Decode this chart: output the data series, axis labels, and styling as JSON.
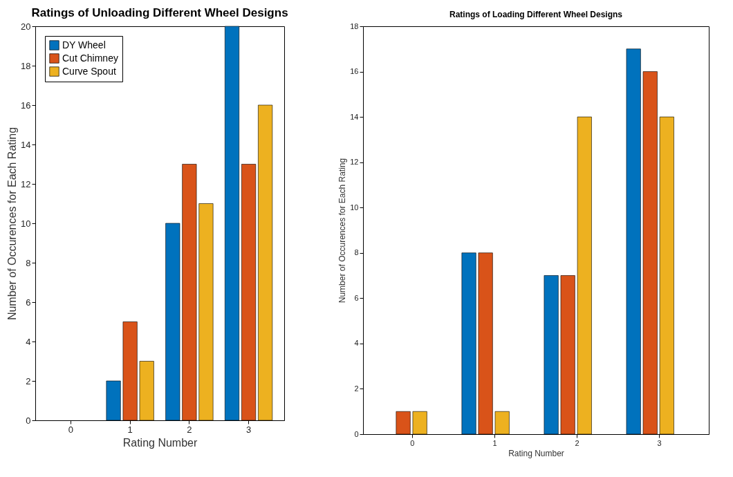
{
  "chart_data": [
    {
      "type": "bar",
      "title": "Ratings of Unloading Different Wheel Designs",
      "xlabel": "Rating Number",
      "ylabel": "Number of Occurences for Each Rating",
      "categories": [
        "0",
        "1",
        "2",
        "3"
      ],
      "ylim": [
        0,
        20
      ],
      "yticks": [
        0,
        2,
        4,
        6,
        8,
        10,
        12,
        14,
        16,
        18,
        20
      ],
      "grid": false,
      "legend": "top left",
      "series": [
        {
          "name": "DY Wheel",
          "color": "#0072bd",
          "values": [
            0,
            2,
            10,
            20
          ]
        },
        {
          "name": "Cut Chimney",
          "color": "#d95319",
          "values": [
            0,
            5,
            13,
            13
          ]
        },
        {
          "name": "Curve Spout",
          "color": "#edb120",
          "values": [
            0,
            3,
            11,
            16
          ]
        }
      ]
    },
    {
      "type": "bar",
      "title": "Ratings of Loading Different Wheel Designs",
      "xlabel": "Rating Number",
      "ylabel": "Number of Occurences for Each Rating",
      "categories": [
        "0",
        "1",
        "2",
        "3"
      ],
      "ylim": [
        0,
        18
      ],
      "yticks": [
        0,
        2,
        4,
        6,
        8,
        10,
        12,
        14,
        16,
        18
      ],
      "grid": false,
      "legend": "top left",
      "series": [
        {
          "name": "DY Wheel",
          "color": "#0072bd",
          "values": [
            0,
            8,
            7,
            17
          ]
        },
        {
          "name": "Cut Chimney",
          "color": "#d95319",
          "values": [
            1,
            8,
            7,
            16
          ]
        },
        {
          "name": "Curve Spout",
          "color": "#edb120",
          "values": [
            1,
            1,
            14,
            14
          ]
        }
      ]
    }
  ]
}
